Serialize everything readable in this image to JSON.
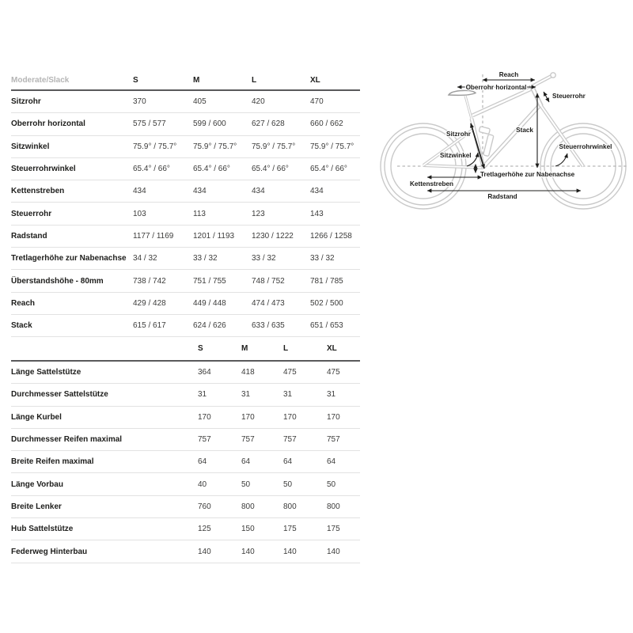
{
  "colors": {
    "background": "#ffffff",
    "header_border": "#59595b",
    "row_border": "#e2e2e2",
    "label_text": "#1d1d1b",
    "value_text": "#3c3c3b",
    "muted_header_text": "#b5b5b5",
    "bike_outline": "#c9c9c9",
    "annotation": "#1d1d1b"
  },
  "geometry_table": {
    "header_label": "Moderate/Slack",
    "columns": [
      "S",
      "M",
      "L",
      "XL"
    ],
    "rows": [
      {
        "label": "Sitzrohr",
        "values": [
          "370",
          "405",
          "420",
          "470"
        ]
      },
      {
        "label": "Oberrohr horizontal",
        "values": [
          "575 / 577",
          "599 / 600",
          "627 / 628",
          "660 / 662"
        ]
      },
      {
        "label": "Sitzwinkel",
        "values": [
          "75.9° / 75.7°",
          "75.9° / 75.7°",
          "75.9° / 75.7°",
          "75.9° / 75.7°"
        ]
      },
      {
        "label": "Steuerrohrwinkel",
        "values": [
          "65.4° / 66°",
          "65.4° / 66°",
          "65.4° / 66°",
          "65.4° / 66°"
        ]
      },
      {
        "label": "Kettenstreben",
        "values": [
          "434",
          "434",
          "434",
          "434"
        ]
      },
      {
        "label": "Steuerrohr",
        "values": [
          "103",
          "113",
          "123",
          "143"
        ]
      },
      {
        "label": "Radstand",
        "values": [
          "1177 / 1169",
          "1201 / 1193",
          "1230 / 1222",
          "1266 / 1258"
        ]
      },
      {
        "label": "Tretlagerhöhe zur Nabenachse",
        "values": [
          "34 / 32",
          "33 / 32",
          "33 / 32",
          "33 / 32"
        ]
      },
      {
        "label": "Überstandshöhe - 80mm",
        "values": [
          "738 / 742",
          "751 / 755",
          "748 / 752",
          "781 / 785"
        ]
      },
      {
        "label": "Reach",
        "values": [
          "429 / 428",
          "449 / 448",
          "474 / 473",
          "502 / 500"
        ]
      },
      {
        "label": "Stack",
        "values": [
          "615 / 617",
          "624 / 626",
          "633 / 635",
          "651 / 653"
        ]
      }
    ]
  },
  "components_table": {
    "columns": [
      "S",
      "M",
      "L",
      "XL"
    ],
    "rows": [
      {
        "label": "Länge Sattelstütze",
        "values": [
          "364",
          "418",
          "475",
          "475"
        ]
      },
      {
        "label": "Durchmesser Sattelstütze",
        "values": [
          "31",
          "31",
          "31",
          "31"
        ]
      },
      {
        "label": "Länge Kurbel",
        "values": [
          "170",
          "170",
          "170",
          "170"
        ]
      },
      {
        "label": "Durchmesser Reifen maximal",
        "values": [
          "757",
          "757",
          "757",
          "757"
        ]
      },
      {
        "label": "Breite Reifen maximal",
        "values": [
          "64",
          "64",
          "64",
          "64"
        ]
      },
      {
        "label": "Länge Vorbau",
        "values": [
          "40",
          "50",
          "50",
          "50"
        ]
      },
      {
        "label": "Breite Lenker",
        "values": [
          "760",
          "800",
          "800",
          "800"
        ]
      },
      {
        "label": "Hub Sattelstütze",
        "values": [
          "125",
          "150",
          "175",
          "175"
        ]
      },
      {
        "label": "Federweg Hinterbau",
        "values": [
          "140",
          "140",
          "140",
          "140"
        ]
      }
    ]
  },
  "diagram": {
    "labels": {
      "reach": "Reach",
      "oberrohr": "Oberrohr horizontal",
      "steuerrohr": "Steuerrohr",
      "stack": "Stack",
      "sitzrohr": "Sitzrohr",
      "sitzwinkel": "Sitzwinkel",
      "steuerrohrwinkel": "Steuerrohrwinkel",
      "tretlagerhoehe": "Tretlagerhöhe zur Nabenachse",
      "kettenstreben": "Kettenstreben",
      "radstand": "Radstand"
    }
  }
}
